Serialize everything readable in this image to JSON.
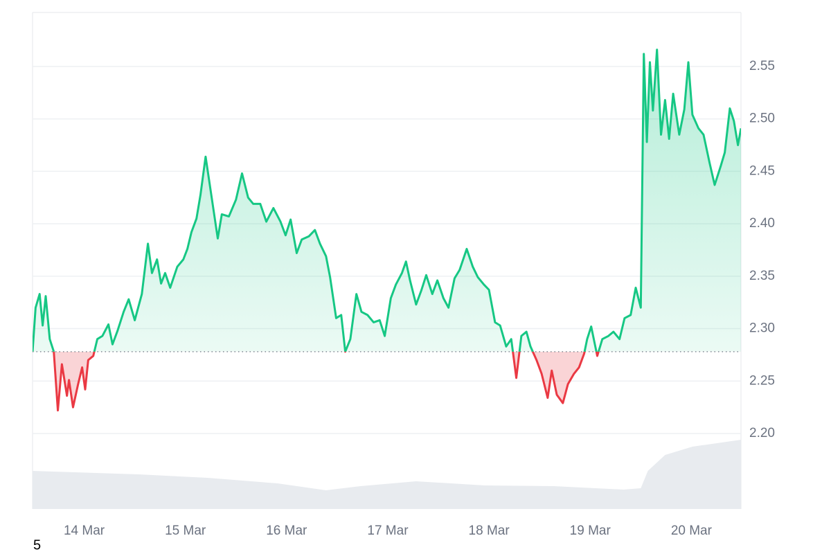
{
  "chart_data": {
    "type": "line",
    "x": [
      13.49,
      13.52,
      13.56,
      13.59,
      13.62,
      13.66,
      13.7,
      13.74,
      13.78,
      13.83,
      13.85,
      13.89,
      13.94,
      13.98,
      14.01,
      14.04,
      14.09,
      14.13,
      14.18,
      14.24,
      14.28,
      14.33,
      14.39,
      14.44,
      14.5,
      14.57,
      14.63,
      14.67,
      14.72,
      14.76,
      14.8,
      14.85,
      14.92,
      14.98,
      15.02,
      15.06,
      15.11,
      15.15,
      15.2,
      15.24,
      15.28,
      15.32,
      15.36,
      15.43,
      15.5,
      15.56,
      15.62,
      15.67,
      15.74,
      15.8,
      15.87,
      15.94,
      15.99,
      16.04,
      16.1,
      16.15,
      16.22,
      16.28,
      16.33,
      16.39,
      16.43,
      16.49,
      16.54,
      16.58,
      16.63,
      16.69,
      16.74,
      16.8,
      16.86,
      16.92,
      16.97,
      17.03,
      17.08,
      17.14,
      17.18,
      17.22,
      17.28,
      17.33,
      17.38,
      17.44,
      17.49,
      17.55,
      17.6,
      17.66,
      17.71,
      17.78,
      17.84,
      17.89,
      17.95,
      18.0,
      18.06,
      18.11,
      18.17,
      18.22,
      18.27,
      18.32,
      18.37,
      18.41,
      18.47,
      18.52,
      18.58,
      18.62,
      18.67,
      18.73,
      18.78,
      18.84,
      18.89,
      18.94,
      18.97,
      19.01,
      19.07,
      19.12,
      19.18,
      19.23,
      19.29,
      19.34,
      19.4,
      19.45,
      19.5,
      19.53,
      19.56,
      19.59,
      19.62,
      19.66,
      19.7,
      19.74,
      19.78,
      19.82,
      19.88,
      19.93,
      19.97,
      20.01,
      20.07,
      20.12,
      20.18,
      20.23,
      20.29,
      20.33,
      20.38,
      20.42,
      20.46,
      20.49
    ],
    "values": [
      2.278,
      2.32,
      2.333,
      2.303,
      2.331,
      2.29,
      2.278,
      2.222,
      2.266,
      2.236,
      2.251,
      2.225,
      2.247,
      2.263,
      2.242,
      2.27,
      2.274,
      2.29,
      2.293,
      2.304,
      2.285,
      2.298,
      2.316,
      2.328,
      2.308,
      2.333,
      2.381,
      2.353,
      2.366,
      2.343,
      2.353,
      2.339,
      2.359,
      2.366,
      2.376,
      2.392,
      2.405,
      2.428,
      2.464,
      2.438,
      2.412,
      2.386,
      2.409,
      2.407,
      2.423,
      2.448,
      2.425,
      2.419,
      2.419,
      2.402,
      2.415,
      2.402,
      2.389,
      2.404,
      2.372,
      2.385,
      2.388,
      2.394,
      2.381,
      2.369,
      2.349,
      2.31,
      2.313,
      2.278,
      2.29,
      2.333,
      2.316,
      2.313,
      2.306,
      2.308,
      2.293,
      2.329,
      2.342,
      2.353,
      2.364,
      2.346,
      2.323,
      2.336,
      2.351,
      2.333,
      2.346,
      2.329,
      2.32,
      2.348,
      2.356,
      2.376,
      2.359,
      2.349,
      2.342,
      2.337,
      2.306,
      2.303,
      2.283,
      2.29,
      2.253,
      2.293,
      2.297,
      2.283,
      2.27,
      2.257,
      2.234,
      2.26,
      2.237,
      2.229,
      2.247,
      2.257,
      2.263,
      2.276,
      2.29,
      2.302,
      2.274,
      2.29,
      2.293,
      2.297,
      2.29,
      2.31,
      2.313,
      2.339,
      2.32,
      2.562,
      2.478,
      2.554,
      2.508,
      2.566,
      2.485,
      2.518,
      2.481,
      2.524,
      2.485,
      2.509,
      2.554,
      2.504,
      2.491,
      2.485,
      2.458,
      2.437,
      2.455,
      2.468,
      2.51,
      2.498,
      2.475,
      2.491
    ],
    "baseline": 2.278,
    "up_color": "#16c784",
    "down_color": "#ea3943",
    "volume": {
      "x": [
        13.49,
        14.54,
        15.22,
        15.91,
        16.39,
        16.73,
        17.28,
        17.96,
        18.64,
        19.33,
        19.5,
        19.57,
        19.74,
        20.01,
        20.49
      ],
      "values": [
        55,
        50,
        45,
        37,
        27,
        33,
        40,
        34,
        33,
        28,
        30,
        55,
        78,
        90,
        100
      ],
      "ylim": [
        0,
        100
      ],
      "color": "#e8ebef"
    },
    "xlim": [
      13.49,
      20.49
    ],
    "xticks": [
      {
        "value": 14,
        "label": "14 Mar"
      },
      {
        "value": 15,
        "label": "15 Mar"
      },
      {
        "value": 16,
        "label": "16 Mar"
      },
      {
        "value": 17,
        "label": "17 Mar"
      },
      {
        "value": 18,
        "label": "18 Mar"
      },
      {
        "value": 19,
        "label": "19 Mar"
      },
      {
        "value": 20,
        "label": "20 Mar"
      }
    ],
    "ylim": [
      2.128,
      2.6015
    ],
    "yticks": [
      {
        "value": 2.2,
        "label": "2.20"
      },
      {
        "value": 2.25,
        "label": "2.25"
      },
      {
        "value": 2.3,
        "label": "2.30"
      },
      {
        "value": 2.35,
        "label": "2.35"
      },
      {
        "value": 2.4,
        "label": "2.40"
      },
      {
        "value": 2.45,
        "label": "2.45"
      },
      {
        "value": 2.5,
        "label": "2.50"
      },
      {
        "value": 2.55,
        "label": "2.55"
      }
    ],
    "grid": true,
    "footnote": "5"
  }
}
